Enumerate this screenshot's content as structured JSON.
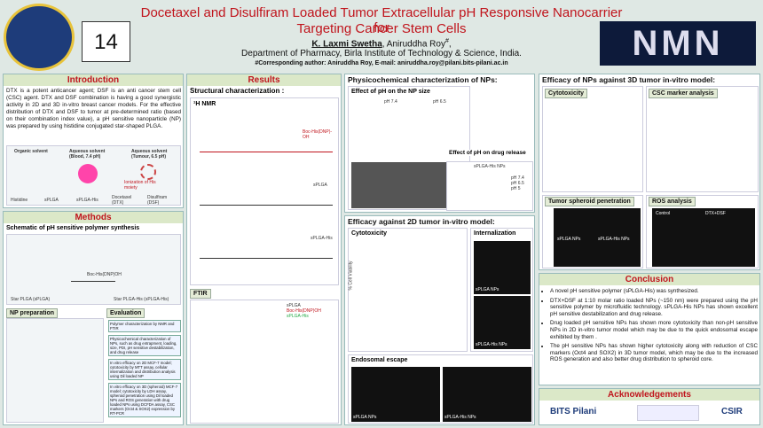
{
  "header": {
    "number": "14",
    "title_line1": "Docetaxel and Disulfiram Loaded Tumor Extracellular pH Responsive Nanocarrier for",
    "title_line2": "Targeting Cancer Stem Cells",
    "author1": "K. Laxmi Swetha",
    "author2": ", Aniruddha Roy",
    "author_mark": "#",
    "author_tail": ",",
    "affiliation": "Department of Pharmacy, Birla Institute of Technology & Science, India.",
    "corresponding": "#Corresponding author:  Aniruddha Roy, E-mail: aniruddha.roy@pilani.bits-pilani.ac.in",
    "logo_right": "NMN"
  },
  "introduction": {
    "heading": "Introduction",
    "text": "DTX is a potent anticancer agent; DSF is an anti cancer stem cell (CSC) agent. DTX and DSF combination is having a good synergistic activity in 2D and 3D in-vitro breast cancer models. For the effective distribution of DTX and DSF to tumor at pre-determined ratio (based on their combination index value), a pH sensitive nanoparticle (NP) was prepared by using histidine conjugated star-shaped PLGA.",
    "figure": {
      "organic": "Organic solvent",
      "blood": "Aqueous solvent (Blood, 7.4 pH)",
      "tumour": "Aqueous solvent (Tumour, 6.5 pH)",
      "ionization": "Ionization of His moiety",
      "legend": [
        "Histidine",
        "sPLGA",
        "sPLGA-His",
        "Docetaxel (DTX)",
        "Disulfiram (DSF)"
      ]
    }
  },
  "methods": {
    "heading": "Methods",
    "synthesis_heading": "Schematic of pH sensitive polymer synthesis",
    "reagent": "Boc-His(DNP)OH",
    "start": "Star PLGA (sPLGA)",
    "product": "Star PLGA-His (sPLGA-His)",
    "np_heading": "NP preparation",
    "eval_heading": "Evaluation",
    "evaluation": [
      "Polymer characterization by NMR and FTIR",
      "Physicochemical characterization of NPs, such as drug entrapment, loading, size, PDI, pH sensitive destabilization, and drug release",
      "In vitro efficacy on 2D MCF-7 model; cytotoxicity by MTT assay, cellular internalization and distribution analysis using Dil loaded NP",
      "In vitro efficacy on 3D (spheroid) MCF-7 model; cytotoxicity by LDH assay, spheroid penetration using Dil loaded NPs and ROS generation with drug loaded NPs using DCFDA assay, CSC markers (Oct4 & SOX2) expression by RT-PCR"
    ]
  },
  "results": {
    "heading": "Results",
    "structural": "Structural characterization :",
    "nmr": "¹H NMR",
    "nmr_labels": [
      "Boc-His(DNP)-OH",
      "sPLGA",
      "sPLGA-His"
    ],
    "ftir": "FTIR",
    "ftir_legend": [
      "sPLGA",
      "Boc-His(DNP)OH",
      "sPLGA-His"
    ]
  },
  "physico": {
    "heading": "Physicochemical characterization of NPs:",
    "size_heading": "Effect of pH on the NP size",
    "ph": [
      "pH 7.4",
      "pH 6.5"
    ],
    "release_heading": "Effect of pH on drug release",
    "release_title": "sPLGA-His NPs",
    "release_legend": [
      "pH 7.4",
      "pH 6.5",
      "pH 5"
    ]
  },
  "efficacy2d": {
    "heading": "Efficacy against 2D tumor in-vitro model:",
    "cytotoxicity": "Cytotoxicity",
    "ylabel": "% Cell Viability",
    "internalization": "Internalization",
    "endosomal": "Endosomal escape",
    "np1": "sPLGA NPs",
    "np2": "sPLGA-His NPs"
  },
  "efficacy3d": {
    "heading": "Efficacy of NPs against 3D tumor in-vitro model:",
    "cytotoxicity": "Cytotoxicity",
    "csc": "CSC marker analysis",
    "penetration": "Tumor spheroid penetration",
    "ros": "ROS analysis",
    "np1": "sPLGA NPs",
    "np2": "sPLGA-His NPs",
    "control": "Control",
    "combo": "DTX+DSF"
  },
  "conclusion": {
    "heading": "Conclusion",
    "points": [
      "A novel pH sensitive polymer (sPLGA-His) was synthesized.",
      "DTX+DSF at 1:10 molar ratio loaded NPs (~150 nm) were prepared using the pH sensitive polymer by microfluidic technology. sPLGA-His NPs has shown excellent pH sensitive destabilization and drug release.",
      "Drug loaded pH sensitive NPs has shown more cytotoxicity than non-pH sensitive NPs in 2D in-vitro tumor model which may be due to the quick endosomal escape exhibited by them .",
      "The pH sensitive NPs has shown higher cytotoxicity along with reduction of CSC markers (Oct4 and SOX2) in 3D tumor model, which may be due to the increased ROS generation and also better drug distribution to spheroid core."
    ]
  },
  "acknowledgements": {
    "heading": "Acknowledgements",
    "logos": [
      "BITS Pilani",
      "CSIR"
    ]
  }
}
